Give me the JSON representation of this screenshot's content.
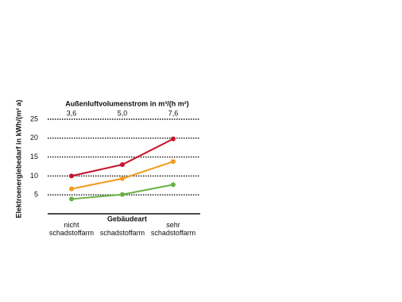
{
  "chart_data": {
    "type": "line",
    "top_axis_label": "Außenluftvolumenstrom in m³/(h m²)",
    "top_categories": [
      "3,6",
      "5,0",
      "7,6"
    ],
    "x_label": "Gebäudeart",
    "y_label": "Elektroenergiebedarf in kWh/(m² a)",
    "categories": [
      "nicht schadstoffarm",
      "schadstoffarm",
      "sehr schadstoffarm"
    ],
    "series": [
      {
        "color": "#c8102e",
        "values": [
          10,
          13,
          19.8
        ]
      },
      {
        "color": "#f39a1e",
        "values": [
          6.6,
          9.3,
          13.8
        ]
      },
      {
        "color": "#6ab245",
        "values": [
          3.9,
          5.1,
          7.7
        ]
      }
    ],
    "ylim": [
      0,
      25
    ],
    "yticks": [
      5,
      10,
      15,
      20,
      25
    ],
    "grid": true
  }
}
